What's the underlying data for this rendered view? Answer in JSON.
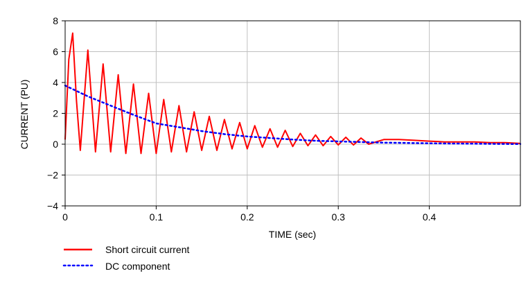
{
  "chart_data": {
    "type": "line",
    "xlabel": "TIME (sec)",
    "ylabel": "CURRENT (PU)",
    "xlim": [
      0,
      0.5
    ],
    "ylim": [
      -4,
      8
    ],
    "xticks": [
      0,
      0.1,
      0.2,
      0.3,
      0.4
    ],
    "xtick_labels": [
      "0",
      "0.1",
      "0.2",
      "0.3",
      "0.4"
    ],
    "yticks": [
      -4,
      -2,
      0,
      2,
      4,
      6,
      8
    ],
    "ytick_labels": [
      "−4",
      "−2",
      "0",
      "2",
      "4",
      "6",
      "8"
    ],
    "grid": true,
    "legend_position": "bottom-left",
    "series": [
      {
        "name": "Short circuit current",
        "color": "#ff0000",
        "style": "solid",
        "x": [
          0,
          0.004,
          0.0083,
          0.0125,
          0.0167,
          0.025,
          0.0333,
          0.0417,
          0.05,
          0.0583,
          0.0667,
          0.075,
          0.0833,
          0.0917,
          0.1,
          0.1083,
          0.1167,
          0.125,
          0.1333,
          0.1417,
          0.15,
          0.1583,
          0.1667,
          0.175,
          0.1833,
          0.1917,
          0.2,
          0.2083,
          0.2167,
          0.225,
          0.2333,
          0.2417,
          0.25,
          0.2583,
          0.2667,
          0.275,
          0.2833,
          0.2917,
          0.3,
          0.3083,
          0.3167,
          0.325,
          0.3333,
          0.35,
          0.3667,
          0.3833,
          0.4,
          0.4167,
          0.4333,
          0.45,
          0.4667,
          0.4833,
          0.5
        ],
        "values": [
          0.3,
          5.5,
          7.2,
          2.8,
          -0.4,
          6.1,
          -0.5,
          5.2,
          -0.5,
          4.5,
          -0.6,
          3.9,
          -0.6,
          3.3,
          -0.6,
          2.9,
          -0.5,
          2.5,
          -0.5,
          2.1,
          -0.4,
          1.8,
          -0.4,
          1.6,
          -0.3,
          1.4,
          -0.3,
          1.2,
          -0.2,
          1.0,
          -0.2,
          0.9,
          -0.15,
          0.7,
          -0.1,
          0.6,
          -0.1,
          0.5,
          -0.05,
          0.45,
          -0.05,
          0.4,
          0.0,
          0.3,
          0.3,
          0.25,
          0.2,
          0.15,
          0.15,
          0.15,
          0.1,
          0.1,
          0.05
        ]
      },
      {
        "name": "DC component",
        "color": "#0000ff",
        "style": "dotted",
        "x": [
          0,
          0.025,
          0.05,
          0.075,
          0.1,
          0.125,
          0.15,
          0.175,
          0.2,
          0.225,
          0.25,
          0.275,
          0.3,
          0.325,
          0.35,
          0.375,
          0.4,
          0.425,
          0.45,
          0.475,
          0.5
        ],
        "values": [
          3.8,
          3.1,
          2.5,
          1.9,
          1.35,
          1.1,
          0.85,
          0.65,
          0.5,
          0.4,
          0.3,
          0.22,
          0.18,
          0.14,
          0.1,
          0.08,
          0.06,
          0.04,
          0.03,
          0.02,
          0.01
        ]
      }
    ]
  }
}
